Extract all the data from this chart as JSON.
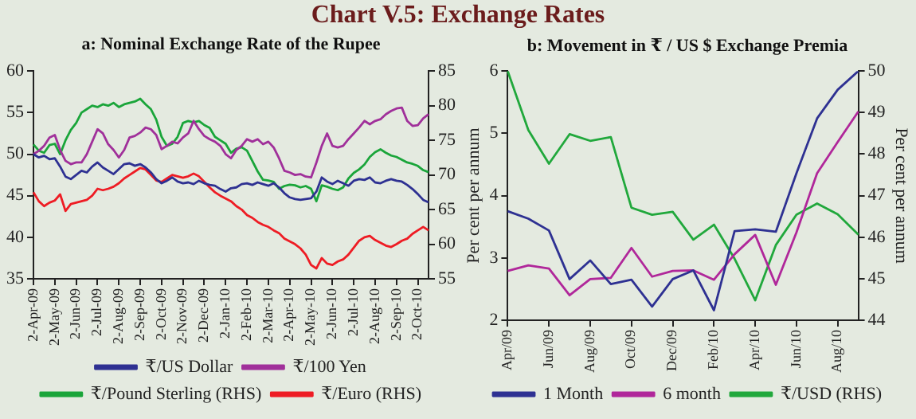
{
  "chart_data": [
    {
      "type": "line",
      "title": "Chart V.5: Exchange Rates",
      "subtitle": "a: Nominal Exchange Rate of the Rupee",
      "categories": [
        "2-Apr-09",
        null,
        null,
        null,
        "2-May-09",
        null,
        null,
        null,
        "2-Jun-09",
        null,
        null,
        null,
        "2-Jul-09",
        null,
        null,
        null,
        "2-Aug-09",
        null,
        null,
        null,
        "2-Sep-09",
        null,
        null,
        null,
        "2-Oct-09",
        null,
        null,
        null,
        "2-Nov-09",
        null,
        null,
        null,
        "2-Dec-09",
        null,
        null,
        null,
        "2-Jan-10",
        null,
        null,
        null,
        "2-Feb-10",
        null,
        null,
        null,
        "2-Mar-10",
        null,
        null,
        null,
        "2-Apr-10",
        null,
        null,
        null,
        "2-May-10",
        null,
        null,
        null,
        "2-Jun-10",
        null,
        null,
        null,
        "2-Jul-10",
        null,
        null,
        null,
        "2-Aug-10",
        null,
        null,
        null,
        "2-Sep-10",
        null,
        null,
        null,
        "2-Oct-10",
        null,
        null
      ],
      "series": [
        {
          "name": "₹/US Dollar",
          "color": "#2e3192",
          "values": [
            50,
            49.6,
            49.8,
            49.4,
            49.5,
            48.5,
            47.3,
            47,
            47.5,
            48,
            47.8,
            48.5,
            49,
            48.4,
            48,
            47.6,
            48.2,
            48.8,
            48.9,
            48.6,
            48.8,
            48.4,
            47.8,
            47,
            46.5,
            46.8,
            47.2,
            46.7,
            46.5,
            46.6,
            46.4,
            46.8,
            46.5,
            46.3,
            46.2,
            45.8,
            45.5,
            45.9,
            46,
            46.4,
            46.5,
            46.3,
            46.6,
            46.4,
            46.2,
            46.5,
            46,
            45.3,
            44.8,
            44.6,
            44.5,
            44.6,
            44.7,
            45.5,
            47.2,
            46.7,
            46.4,
            46.8,
            46.5,
            46.2,
            46.8,
            47,
            46.9,
            47.2,
            46.6,
            46.5,
            46.8,
            47,
            46.8,
            46.7,
            46.3,
            45.8,
            45.2,
            44.5,
            44.2
          ]
        },
        {
          "name": "₹/100 Yen",
          "color": "#a0309a",
          "values": [
            50,
            50.4,
            51,
            52,
            52.3,
            50.5,
            49.2,
            48.8,
            49,
            49,
            50,
            51.5,
            53,
            52.5,
            51.2,
            50.5,
            49.6,
            50.5,
            52,
            52.2,
            52.6,
            53.2,
            53,
            52.3,
            50.6,
            51,
            51.5,
            51.3,
            52,
            52.5,
            54,
            53,
            52.2,
            51.8,
            51.5,
            51,
            50,
            49.5,
            50.5,
            51,
            51.8,
            51.5,
            51.8,
            51.2,
            51.5,
            50.8,
            49.5,
            48,
            47.8,
            47.5,
            47.6,
            47.3,
            47.2,
            49,
            51,
            52.5,
            51,
            50.8,
            51,
            51.8,
            52.5,
            53.2,
            54,
            53.6,
            54,
            54.2,
            54.8,
            55.2,
            55.5,
            55.6,
            54,
            53.4,
            53.5,
            54.3,
            54.8
          ]
        },
        {
          "name": "₹/Pound Sterling (RHS)",
          "color": "#1aa53a",
          "axis": "y2",
          "values": [
            74.4,
            73.5,
            73.2,
            74.3,
            74.5,
            73,
            75,
            76.5,
            77.5,
            79,
            79.5,
            80,
            79.8,
            80.2,
            80,
            80.4,
            79.8,
            80.2,
            80.4,
            80.6,
            81,
            80.2,
            79.5,
            78,
            75.5,
            74.2,
            74.5,
            75.5,
            77.5,
            77.8,
            77.6,
            77.8,
            77.2,
            76.8,
            75.5,
            75,
            74.5,
            73.2,
            73.8,
            74,
            73.5,
            72,
            70.5,
            69.3,
            69.2,
            69,
            68,
            68.4,
            68.6,
            68.5,
            68.2,
            68.4,
            68,
            66.2,
            68.5,
            68.3,
            68,
            67.8,
            68.2,
            69.5,
            70.3,
            70.8,
            71.5,
            72.6,
            73.3,
            73.7,
            73.2,
            72.8,
            72.6,
            72.2,
            71.8,
            71.6,
            71.3,
            70.7,
            70.4
          ]
        },
        {
          "name": "₹/Euro (RHS)",
          "color": "#ee1c24",
          "axis": "y2",
          "values": [
            67.5,
            66.2,
            65.5,
            66,
            66.3,
            67.2,
            64.8,
            65.8,
            66,
            66.2,
            66.4,
            67,
            68,
            67.8,
            68,
            68.3,
            68.8,
            69.5,
            70,
            70.5,
            71,
            70.8,
            70,
            69.2,
            69,
            69.5,
            70,
            69.8,
            69.6,
            69.8,
            70.2,
            69.8,
            69,
            68.2,
            67.5,
            67,
            66.6,
            66.2,
            65.5,
            65,
            64.2,
            63.8,
            63.2,
            62.8,
            62.5,
            62,
            61.6,
            60.8,
            60.4,
            60,
            59.4,
            58.5,
            57,
            56.5,
            58,
            57.2,
            57,
            57.5,
            57.8,
            58.5,
            59.5,
            60.5,
            61,
            61.2,
            60.6,
            60.2,
            59.8,
            59.6,
            60,
            60.5,
            60.8,
            61.5,
            62,
            62.5,
            62
          ]
        }
      ],
      "ylim": [
        35,
        60
      ],
      "yticks": [
        35,
        40,
        45,
        50,
        55,
        60
      ],
      "y2lim": [
        55,
        85
      ],
      "y2ticks": [
        55,
        60,
        65,
        70,
        75,
        80,
        85
      ],
      "legend": "bottom"
    },
    {
      "type": "line",
      "subtitle": "b: Movement in ₹ / US $ Exchange Premia",
      "categories": [
        "Apr/09",
        null,
        "Jun/09",
        null,
        "Aug/09",
        null,
        "Oct/09",
        null,
        "Dec/09",
        null,
        "Feb/10",
        null,
        "Apr/10",
        null,
        "Jun/10",
        null,
        "Aug/10",
        null
      ],
      "ylabel": "Per cent per annum",
      "y2label": "Per cent per annum",
      "series": [
        {
          "name": "1 Month",
          "color": "#2e3192",
          "values": [
            3.75,
            3.63,
            3.44,
            2.66,
            2.96,
            2.58,
            2.65,
            2.22,
            2.66,
            2.8,
            2.16,
            3.43,
            3.46,
            3.42,
            4.36,
            5.24,
            5.7,
            6.0
          ]
        },
        {
          "name": "6 month",
          "color": "#b0279a",
          "values": [
            2.79,
            2.88,
            2.83,
            2.4,
            2.66,
            2.68,
            3.16,
            2.7,
            2.79,
            2.8,
            2.65,
            3.06,
            3.37,
            2.57,
            3.41,
            4.36,
            4.86,
            5.35
          ]
        },
        {
          "name": "₹/USD (RHS)",
          "color": "#21a83c",
          "axis": "y2",
          "values": [
            50,
            48.58,
            47.77,
            48.48,
            48.32,
            48.41,
            46.71,
            46.54,
            46.61,
            45.94,
            46.3,
            45.48,
            44.48,
            45.81,
            46.54,
            46.81,
            46.55,
            46.06
          ]
        }
      ],
      "ylim": [
        2,
        6
      ],
      "yticks": [
        2,
        3,
        4,
        5,
        6
      ],
      "y2lim": [
        44,
        50
      ],
      "y2ticks": [
        44,
        45,
        46,
        47,
        48,
        49,
        50
      ],
      "legend": "bottom"
    }
  ]
}
